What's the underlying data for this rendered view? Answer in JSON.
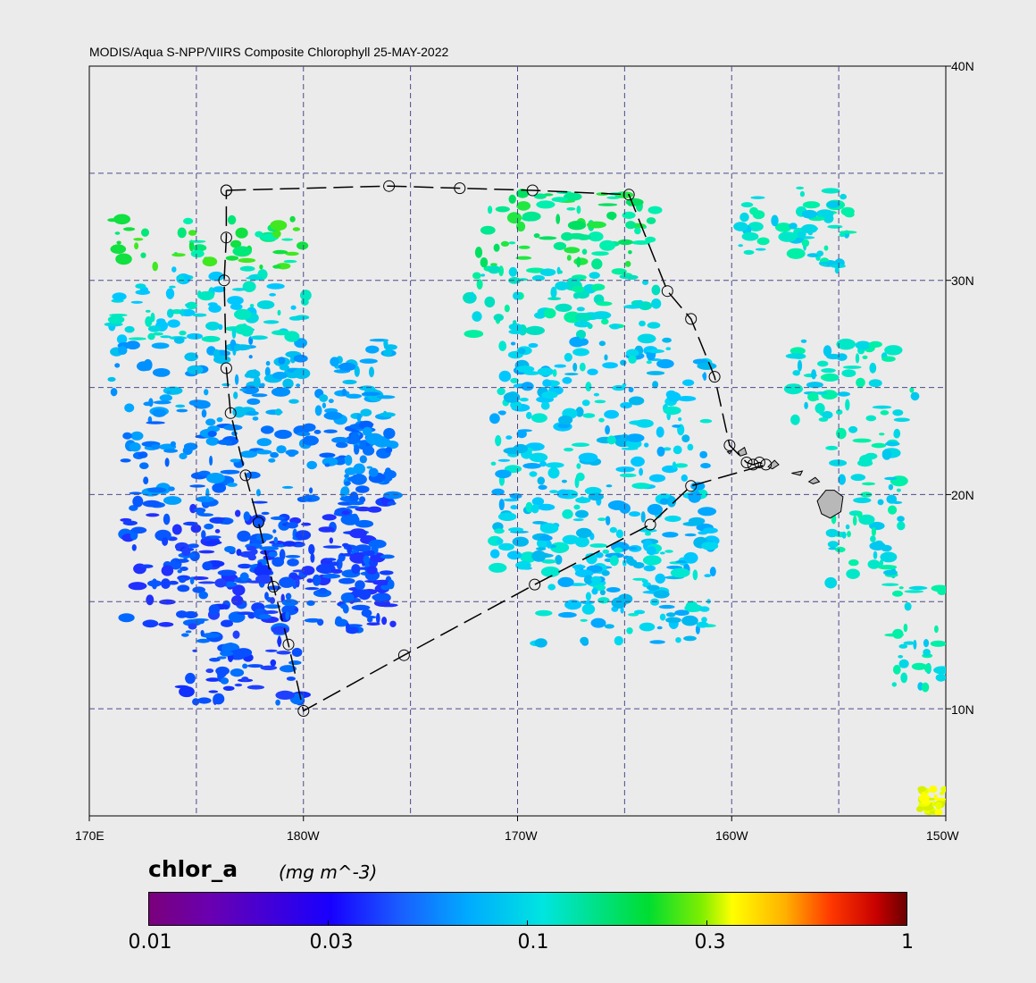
{
  "title": "MODIS/Aqua S-NPP/VIIRS Composite Chlorophyll 25-MAY-2022",
  "map": {
    "extent": {
      "lon_min": 170,
      "lon_max": 210,
      "lat_min": 5,
      "lat_max": 40
    },
    "lat_labels": [
      "40N",
      "30N",
      "20N",
      "10N"
    ],
    "lon_labels": [
      "170E",
      "180W",
      "170W",
      "160W",
      "150W"
    ],
    "grid_lines": "dashed"
  },
  "colorbar": {
    "variable": "chlor_a",
    "units": "(mg m^-3)",
    "scale": "log",
    "range": [
      0.01,
      1
    ],
    "tick_labels": [
      "0.01",
      "0.03",
      "0.1",
      "0.3",
      "1"
    ],
    "colormap": "rainbow"
  },
  "cruise_track": {
    "description_values": [
      [
        176.4,
        34.2
      ],
      [
        184.0,
        34.4
      ],
      [
        187.3,
        34.3
      ],
      [
        190.7,
        34.2
      ],
      [
        195.2,
        34.0
      ],
      [
        197.0,
        29.5
      ],
      [
        198.1,
        28.2
      ],
      [
        199.2,
        25.5
      ],
      [
        199.9,
        22.3
      ],
      [
        200.7,
        21.5
      ],
      [
        201.0,
        21.4
      ],
      [
        201.3,
        21.5
      ],
      [
        201.6,
        21.4
      ],
      [
        198.1,
        20.4
      ],
      [
        196.2,
        18.6
      ],
      [
        190.8,
        15.8
      ],
      [
        184.7,
        12.5
      ],
      [
        180.0,
        9.9
      ],
      [
        179.3,
        13.0
      ],
      [
        178.6,
        15.7
      ],
      [
        177.9,
        18.7
      ],
      [
        177.3,
        20.9
      ],
      [
        176.6,
        23.8
      ],
      [
        176.4,
        25.9
      ],
      [
        176.3,
        30.0
      ],
      [
        176.4,
        32.0
      ],
      [
        176.4,
        34.2
      ]
    ]
  }
}
